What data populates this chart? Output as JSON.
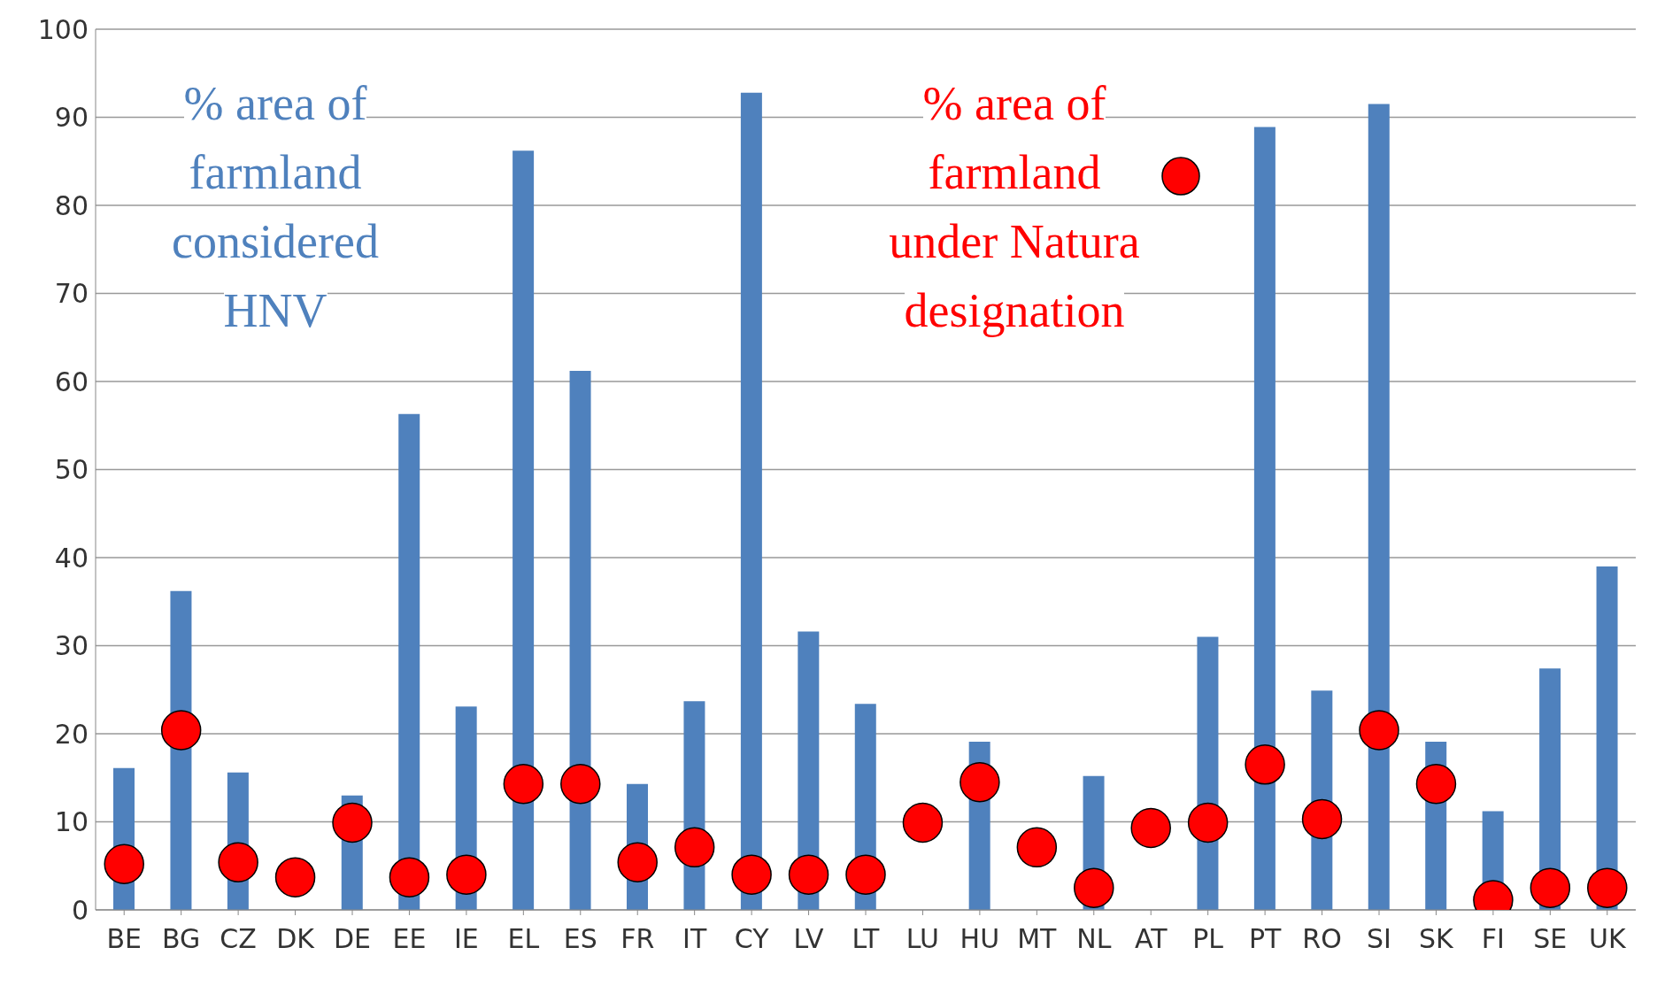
{
  "chart_data": {
    "type": "bar",
    "categories": [
      "BE",
      "BG",
      "CZ",
      "DK",
      "DE",
      "EE",
      "IE",
      "EL",
      "ES",
      "FR",
      "IT",
      "CY",
      "LV",
      "LT",
      "LU",
      "HU",
      "MT",
      "NL",
      "AT",
      "PL",
      "PT",
      "RO",
      "SI",
      "SK",
      "FI",
      "SE",
      "UK"
    ],
    "series": [
      {
        "name": "% area of farmland considered HNV",
        "color": "#4f81bd",
        "values": [
          16.1,
          36.2,
          15.6,
          null,
          13.0,
          56.3,
          23.1,
          86.2,
          61.2,
          14.3,
          23.7,
          92.8,
          31.6,
          23.4,
          null,
          19.1,
          null,
          15.2,
          null,
          31.0,
          88.9,
          24.9,
          91.5,
          19.1,
          11.2,
          27.4,
          39.0
        ]
      },
      {
        "name": "% area of farmland under Natura designation",
        "type": "scatter",
        "color": "#ff0000",
        "values": [
          5.2,
          20.4,
          5.4,
          3.7,
          9.9,
          3.7,
          4.0,
          14.3,
          14.3,
          5.4,
          7.1,
          4.0,
          4.0,
          4.0,
          9.9,
          14.5,
          7.1,
          2.5,
          9.3,
          9.9,
          16.5,
          10.3,
          20.4,
          14.3,
          1.1,
          2.5,
          2.5
        ]
      }
    ],
    "ylim": [
      0,
      100
    ],
    "yticks": [
      0,
      10,
      20,
      30,
      40,
      50,
      60,
      70,
      80,
      90,
      100
    ],
    "grid": "y",
    "legend": "top",
    "marker": "circle"
  }
}
